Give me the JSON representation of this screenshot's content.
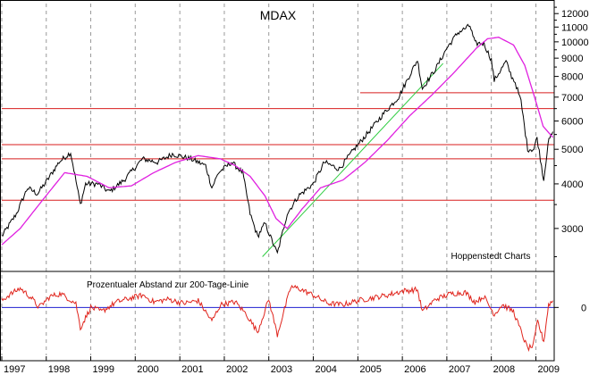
{
  "chart_data": [
    {
      "type": "line",
      "title": "MDAX",
      "watermark": "Hoppenstedt Charts",
      "y_scale": "log",
      "ylim": [
        2300,
        12800
      ],
      "xlim": [
        "1997-01-01",
        "2009-05-31"
      ],
      "y_ticks": [
        3000,
        4000,
        5000,
        6000,
        7000,
        8000,
        9000,
        10000,
        11000,
        12000
      ],
      "y_tick_labels": [
        "3000",
        "4000",
        "5000",
        "6000",
        "7000",
        "8000",
        "9000",
        "10000",
        "11000",
        "12000"
      ],
      "x_tick_labels": [
        "1997",
        "1998",
        "1999",
        "2000",
        "2001",
        "2002",
        "2003",
        "2004",
        "2005",
        "2006",
        "2007",
        "2008",
        "2009"
      ],
      "grid": "vertical dashed at year boundaries",
      "series": [
        {
          "role": "price",
          "color": "#000000",
          "x": [
            "1997-01-01",
            "1997-05-01",
            "1997-08-01",
            "1997-10-20",
            "1998-01-10",
            "1998-04-15",
            "1998-07-20",
            "1998-10-08",
            "1998-11-20",
            "1999-03-01",
            "1999-06-01",
            "1999-10-01",
            "2000-03-01",
            "2000-07-01",
            "2000-11-01",
            "2001-04-01",
            "2001-08-01",
            "2001-09-21",
            "2001-11-15",
            "2002-03-01",
            "2002-06-01",
            "2002-08-01",
            "2002-10-01",
            "2002-12-01",
            "2003-03-12",
            "2003-06-01",
            "2003-09-01",
            "2004-01-01",
            "2004-04-01",
            "2004-08-01",
            "2004-12-01",
            "2005-04-01",
            "2005-08-01",
            "2005-12-01",
            "2006-05-05",
            "2006-06-14",
            "2006-10-01",
            "2007-01-01",
            "2007-04-01",
            "2007-07-10",
            "2007-08-20",
            "2007-11-01",
            "2008-01-01",
            "2008-01-25",
            "2008-05-01",
            "2008-06-15",
            "2008-07-15",
            "2008-09-01",
            "2008-10-25",
            "2008-12-15",
            "2009-01-10",
            "2009-03-06",
            "2009-04-10",
            "2009-05-20"
          ],
          "values": [
            2850,
            3300,
            3900,
            3750,
            4100,
            4600,
            4900,
            3500,
            4000,
            4000,
            3800,
            4100,
            4700,
            4600,
            4850,
            4700,
            4500,
            3900,
            4300,
            4600,
            4300,
            3300,
            2850,
            3100,
            2550,
            3300,
            3700,
            4000,
            4600,
            4400,
            5000,
            5600,
            6300,
            7000,
            8900,
            7400,
            8400,
            9600,
            10600,
            11100,
            9900,
            9900,
            8900,
            7800,
            8800,
            8000,
            7700,
            6800,
            5000,
            5000,
            5400,
            4100,
            5200,
            5600
          ]
        },
        {
          "role": "200-day moving average",
          "color": "#e020e0",
          "x": [
            "1997-01-01",
            "1997-06-01",
            "1997-12-01",
            "1998-06-01",
            "1998-12-01",
            "1999-06-01",
            "1999-12-01",
            "2000-06-01",
            "2000-12-01",
            "2001-06-01",
            "2001-12-01",
            "2002-04-01",
            "2002-08-01",
            "2002-12-01",
            "2003-03-01",
            "2003-06-01",
            "2003-10-01",
            "2004-03-01",
            "2004-09-01",
            "2005-03-01",
            "2005-09-01",
            "2006-03-01",
            "2006-09-01",
            "2007-03-01",
            "2007-09-01",
            "2007-12-01",
            "2008-03-01",
            "2008-07-01",
            "2008-10-01",
            "2009-01-01",
            "2009-03-01",
            "2009-05-20"
          ],
          "values": [
            2700,
            3000,
            3600,
            4300,
            4200,
            3900,
            3950,
            4300,
            4600,
            4800,
            4700,
            4500,
            4200,
            3700,
            3200,
            3000,
            3400,
            3900,
            4100,
            4600,
            5300,
            6200,
            7100,
            8200,
            9600,
            10200,
            10300,
            9800,
            8600,
            6800,
            5800,
            5400
          ]
        }
      ],
      "reference_lines": [
        {
          "kind": "horizontal",
          "color": "#d81e1e",
          "value": 5150,
          "from": "1997-01-01",
          "to": "2009-05-31"
        },
        {
          "kind": "horizontal",
          "color": "#d81e1e",
          "value": 4700,
          "from": "1997-01-01",
          "to": "2009-05-31"
        },
        {
          "kind": "horizontal",
          "color": "#d81e1e",
          "value": 3600,
          "from": "1997-01-01",
          "to": "2009-05-31"
        },
        {
          "kind": "horizontal",
          "color": "#d81e1e",
          "value": 7200,
          "from": "2005-01-20",
          "to": "2009-05-31"
        },
        {
          "kind": "horizontal",
          "color": "#d81e1e",
          "value": 6500,
          "from": "1997-01-01",
          "to": "2009-05-31"
        },
        {
          "kind": "trendline",
          "color": "#2ecc40",
          "from": "2002-11-10",
          "from_value": 2500,
          "to": "2006-12-01",
          "to_value": 8700
        }
      ]
    },
    {
      "type": "line",
      "title": "Prozentualer Abstand zur 200-Tage-Linie",
      "y_ticks": [
        0
      ],
      "y_tick_labels": [
        "0"
      ],
      "ylim": [
        -35,
        25
      ],
      "xlim": [
        "1997-01-01",
        "2009-05-31"
      ],
      "baseline": {
        "value": 0,
        "color": "#2020d0"
      },
      "series": [
        {
          "color": "#e0241c",
          "x": [
            "1997-01-01",
            "1997-03-01",
            "1997-06-01",
            "1997-09-01",
            "1997-11-01",
            "1998-02-01",
            "1998-05-01",
            "1998-09-01",
            "1998-10-08",
            "1999-01-01",
            "1999-04-01",
            "1999-08-01",
            "1999-12-01",
            "2000-03-01",
            "2000-06-01",
            "2000-10-01",
            "2001-02-01",
            "2001-06-01",
            "2001-09-21",
            "2001-12-01",
            "2002-04-01",
            "2002-07-01",
            "2002-10-01",
            "2003-01-01",
            "2003-03-12",
            "2003-07-01",
            "2003-09-01",
            "2004-01-01",
            "2004-05-01",
            "2004-09-01",
            "2005-01-01",
            "2005-05-01",
            "2005-09-01",
            "2006-01-01",
            "2006-05-05",
            "2006-06-14",
            "2006-10-01",
            "2007-02-01",
            "2007-06-01",
            "2007-08-20",
            "2007-11-01",
            "2008-01-25",
            "2008-04-01",
            "2008-07-01",
            "2008-10-25",
            "2008-12-10",
            "2009-01-15",
            "2009-03-06",
            "2009-04-15",
            "2009-05-20"
          ],
          "values": [
            5,
            9,
            14,
            7,
            0,
            8,
            10,
            3,
            -15,
            0,
            -3,
            4,
            7,
            9,
            4,
            6,
            3,
            5,
            -10,
            2,
            4,
            -5,
            -18,
            6,
            -20,
            15,
            14,
            9,
            3,
            2,
            5,
            7,
            9,
            12,
            13,
            -3,
            6,
            10,
            11,
            4,
            8,
            -5,
            2,
            -3,
            -30,
            -28,
            -10,
            -25,
            2,
            5
          ]
        }
      ]
    }
  ]
}
